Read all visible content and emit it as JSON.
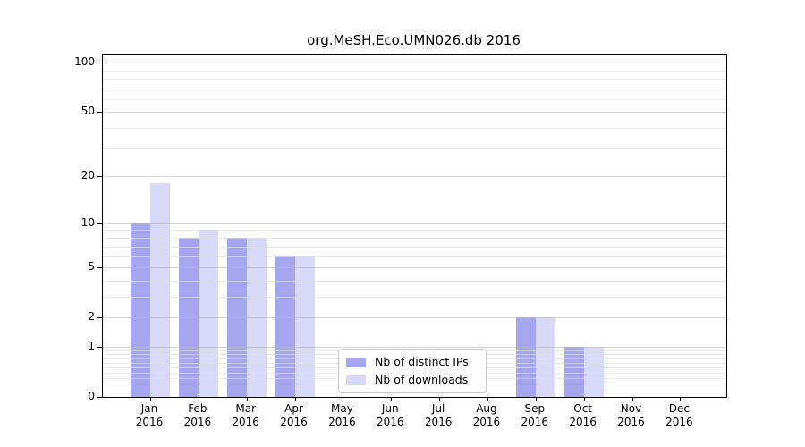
{
  "chart_data": {
    "type": "bar",
    "title": "org.MeSH.Eco.UMN026.db 2016",
    "categories": [
      {
        "month": "Jan",
        "year": "2016"
      },
      {
        "month": "Feb",
        "year": "2016"
      },
      {
        "month": "Mar",
        "year": "2016"
      },
      {
        "month": "Apr",
        "year": "2016"
      },
      {
        "month": "May",
        "year": "2016"
      },
      {
        "month": "Jun",
        "year": "2016"
      },
      {
        "month": "Jul",
        "year": "2016"
      },
      {
        "month": "Aug",
        "year": "2016"
      },
      {
        "month": "Sep",
        "year": "2016"
      },
      {
        "month": "Oct",
        "year": "2016"
      },
      {
        "month": "Nov",
        "year": "2016"
      },
      {
        "month": "Dec",
        "year": "2016"
      }
    ],
    "series": [
      {
        "name": "Nb of distinct IPs",
        "color": "#a5a5f0",
        "values": [
          10,
          8,
          8,
          6,
          0,
          0,
          0,
          0,
          2,
          1,
          0,
          0
        ]
      },
      {
        "name": "Nb of downloads",
        "color": "#d8d8f9",
        "values": [
          18,
          9,
          8,
          6,
          0,
          0,
          0,
          0,
          2,
          1,
          0,
          0
        ]
      }
    ],
    "yscale": "log1p",
    "ylim": [
      0,
      112
    ],
    "yticks": [
      0,
      1,
      2,
      5,
      10,
      20,
      50,
      100
    ],
    "y_minor_gridlines": [
      0.2,
      0.3,
      0.4,
      0.5,
      0.6,
      0.7,
      0.8,
      0.9,
      3,
      4,
      6,
      7,
      8,
      9,
      30,
      40,
      60,
      70,
      80,
      90
    ],
    "grid": "horizontal",
    "legend_position": "lower center",
    "colors": {
      "axis": "#000000",
      "grid_major": "#c9c9c9",
      "grid_minor": "#ececec",
      "background": "#ffffff"
    }
  }
}
